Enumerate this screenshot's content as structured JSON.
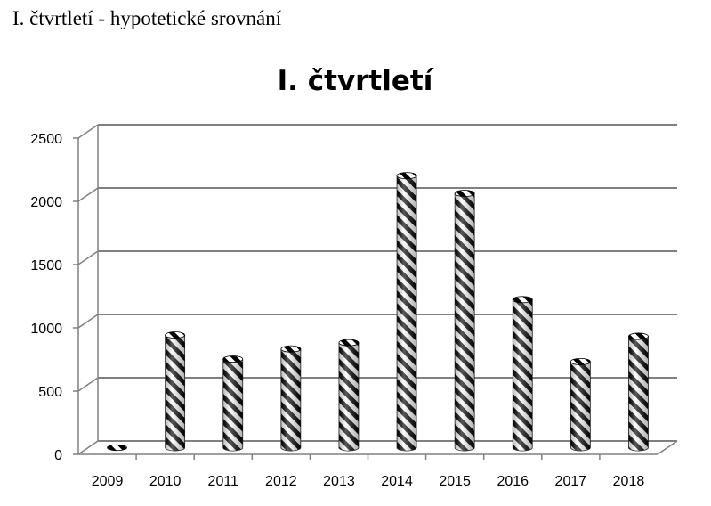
{
  "page": {
    "heading": "I. čtvrtletí - hypotetické srovnání"
  },
  "chart_data": {
    "type": "bar",
    "title": "I. čtvrtletí",
    "xlabel": "",
    "ylabel": "",
    "categories": [
      "2009",
      "2010",
      "2011",
      "2012",
      "2013",
      "2014",
      "2015",
      "2016",
      "2017",
      "2018"
    ],
    "values": [
      0,
      890,
      700,
      780,
      830,
      2150,
      2010,
      1170,
      680,
      880
    ],
    "ylim": [
      0,
      2500
    ],
    "yticks": [
      0,
      500,
      1000,
      1500,
      2000,
      2500
    ],
    "grid": true,
    "legend": "none",
    "bar_style": "3D cylinders with black-and-white diagonal stripe pattern",
    "colors": {
      "bar_dark": "#000000",
      "bar_light": "#ffffff",
      "grid": "#808080",
      "axis": "#808080"
    }
  }
}
